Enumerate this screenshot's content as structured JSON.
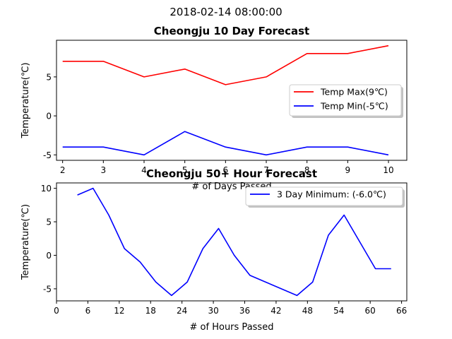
{
  "suptitle": "2018-02-14 08:00:00",
  "chart_data": [
    {
      "type": "line",
      "title": "Cheongju 10 Day Forecast",
      "xlabel": "# of Days Passed",
      "ylabel": "Temperature(℃)",
      "xlim": [
        1.85,
        10.45
      ],
      "ylim": [
        -5.7,
        9.7
      ],
      "xticks": [
        2,
        3,
        4,
        5,
        6,
        7,
        8,
        9,
        10
      ],
      "yticks": [
        -5,
        0,
        5
      ],
      "legend_position": "center-right",
      "series": [
        {
          "name": "Temp Max(9℃)",
          "color": "#ff0000",
          "x": [
            2,
            3,
            4,
            5,
            6,
            7,
            8,
            9,
            10
          ],
          "y": [
            7,
            7,
            5,
            6,
            4,
            5,
            8,
            8,
            9
          ]
        },
        {
          "name": "Temp Min(-5℃)",
          "color": "#0000ff",
          "x": [
            2,
            3,
            4,
            5,
            6,
            7,
            8,
            9,
            10
          ],
          "y": [
            -4,
            -4,
            -5,
            -2,
            -4,
            -5,
            -4,
            -4,
            -5
          ]
        }
      ]
    },
    {
      "type": "line",
      "title": "Cheongju 50+ Hour Forecast",
      "xlabel": "# of Hours Passed",
      "ylabel": "Temperature(℃)",
      "xlim": [
        0,
        67
      ],
      "ylim": [
        -6.8,
        10.8
      ],
      "xticks": [
        0,
        6,
        12,
        18,
        24,
        30,
        36,
        42,
        48,
        54,
        60,
        66
      ],
      "yticks": [
        -5,
        0,
        5,
        10
      ],
      "legend_position": "top-right",
      "series": [
        {
          "name": "3 Day Minimum: (-6.0℃)",
          "color": "#0000ff",
          "x": [
            4,
            7,
            10,
            13,
            16,
            19,
            22,
            25,
            28,
            31,
            34,
            37,
            40,
            43,
            46,
            49,
            52,
            55,
            58,
            61,
            64
          ],
          "y": [
            9,
            10,
            6,
            1,
            -1,
            -4,
            -6,
            -4,
            1,
            4,
            0,
            -3,
            -4,
            -5,
            -6,
            -4,
            3,
            6,
            2,
            -2,
            -2
          ]
        }
      ]
    }
  ]
}
